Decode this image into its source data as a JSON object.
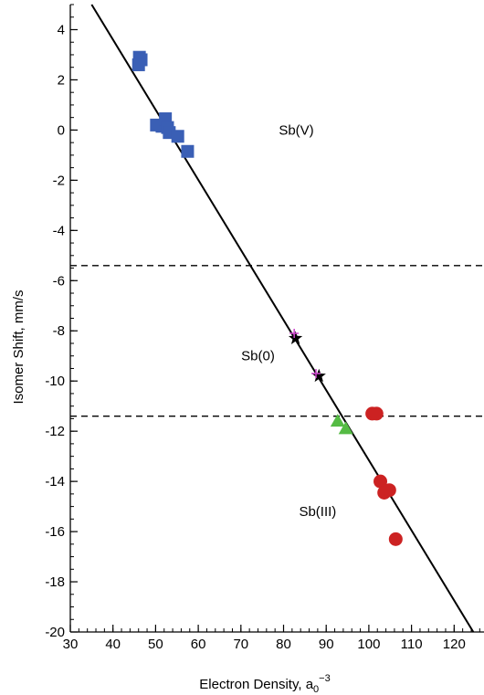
{
  "chart_data": {
    "type": "scatter",
    "xlabel": "Electron Density, a",
    "xlabel_sub": "0",
    "xlabel_sup": "−3",
    "ylabel": "Isomer Shift, mm/s",
    "xlim": [
      30,
      127
    ],
    "ylim": [
      -20,
      5
    ],
    "x_ticks": [
      30,
      40,
      50,
      60,
      70,
      80,
      90,
      100,
      110,
      120
    ],
    "y_ticks": [
      4,
      2,
      0,
      -2,
      -4,
      -6,
      -8,
      -10,
      -12,
      -14,
      -16,
      -18,
      -20
    ],
    "minor_x_step": 2,
    "minor_y_step": 0.5,
    "grid": false,
    "fit_line": {
      "x": [
        35,
        124.5
      ],
      "y": [
        5,
        -20
      ],
      "color": "#000000",
      "style": "solid"
    },
    "dividers": [
      {
        "y": -5.4,
        "style": "dashed",
        "color": "#000000"
      },
      {
        "y": -11.4,
        "style": "dashed",
        "color": "#000000"
      }
    ],
    "region_labels": [
      {
        "text": "Sb(V)",
        "x": 83,
        "y": 0
      },
      {
        "text": "Sb(0)",
        "x": 74,
        "y": -9
      },
      {
        "text": "Sb(III)",
        "x": 88,
        "y": -15.2
      }
    ],
    "series": [
      {
        "marker": "square",
        "color": "#3a5fb5",
        "points": [
          [
            46.2,
            2.9
          ],
          [
            46.6,
            2.8
          ],
          [
            46.0,
            2.6
          ],
          [
            50.2,
            0.2
          ],
          [
            51.5,
            0.15
          ],
          [
            52.3,
            0.45
          ],
          [
            52.8,
            0.1
          ],
          [
            53.2,
            -0.1
          ],
          [
            55.2,
            -0.25
          ],
          [
            57.5,
            -0.85
          ]
        ]
      },
      {
        "marker": "star",
        "color": "#000000",
        "points": [
          [
            82.8,
            -8.3
          ],
          [
            88.3,
            -9.8
          ]
        ]
      },
      {
        "marker": "plus",
        "color": "#cc44cc",
        "points": [
          [
            82.5,
            -8.1
          ],
          [
            87.6,
            -9.7
          ]
        ]
      },
      {
        "marker": "triangle",
        "color": "#55bb44",
        "points": [
          [
            92.7,
            -11.6
          ],
          [
            94.6,
            -11.9
          ]
        ]
      },
      {
        "marker": "circle",
        "color": "#cc2222",
        "points": [
          [
            100.8,
            -11.3
          ],
          [
            101.8,
            -11.3
          ],
          [
            102.7,
            -14.0
          ],
          [
            103.6,
            -14.45
          ],
          [
            104.8,
            -14.35
          ],
          [
            106.3,
            -16.3
          ]
        ]
      }
    ]
  }
}
